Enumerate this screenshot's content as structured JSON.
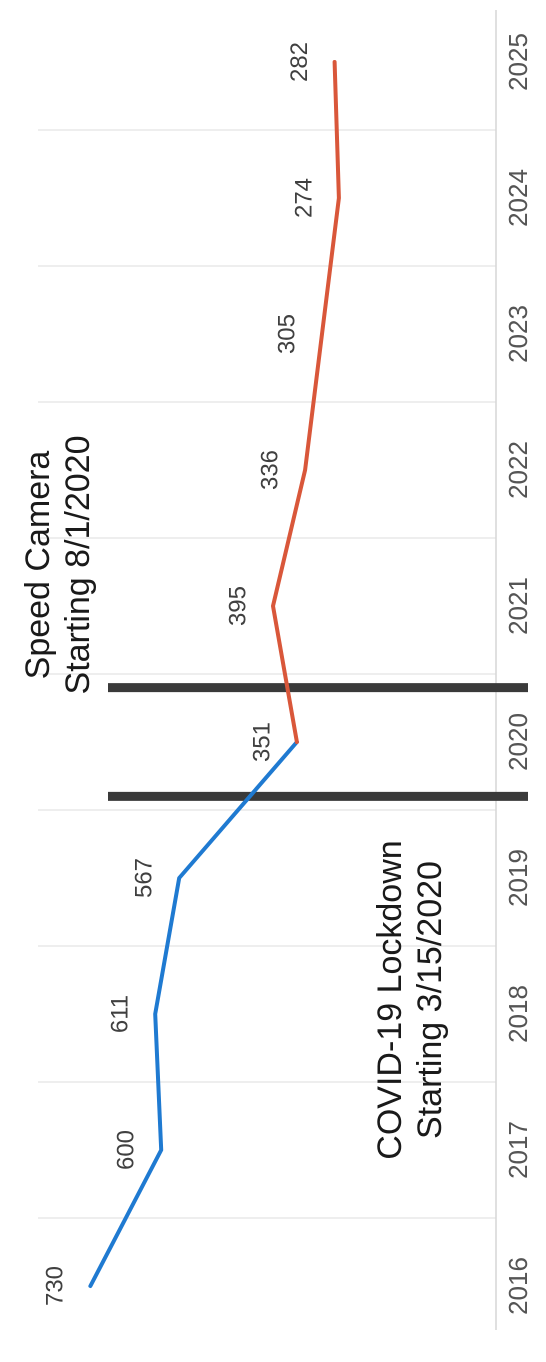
{
  "chart_data": {
    "type": "line",
    "x": [
      "2016",
      "2017",
      "2018",
      "2019",
      "2020",
      "2021",
      "2022",
      "2023",
      "2024",
      "2025"
    ],
    "series": [
      {
        "color": "#1f7ad1",
        "points": [
          {
            "x": 2016.0,
            "y": 730
          },
          {
            "x": 2017.0,
            "y": 600
          },
          {
            "x": 2018.0,
            "y": 611
          },
          {
            "x": 2019.0,
            "y": 567
          },
          {
            "x": 2020.0,
            "y": 351
          }
        ],
        "labels": [
          {
            "x": 2016.0,
            "text": "730"
          },
          {
            "x": 2017.0,
            "text": "600"
          },
          {
            "x": 2018.0,
            "text": "611"
          },
          {
            "x": 2019.0,
            "text": "567"
          },
          {
            "x": 2020.0,
            "text": "351"
          }
        ]
      },
      {
        "color": "#d9573a",
        "points": [
          {
            "x": 2020.0,
            "y": 351
          },
          {
            "x": 2021.0,
            "y": 395
          },
          {
            "x": 2022.0,
            "y": 336
          },
          {
            "x": 2023.0,
            "y": 305
          },
          {
            "x": 2024.0,
            "y": 274
          },
          {
            "x": 2025.0,
            "y": 282
          }
        ],
        "labels": [
          {
            "x": 2021.0,
            "text": "395"
          },
          {
            "x": 2022.0,
            "text": "336"
          },
          {
            "x": 2023.0,
            "text": "305"
          },
          {
            "x": 2024.0,
            "text": "274"
          },
          {
            "x": 2025.0,
            "text": "282"
          }
        ]
      }
    ],
    "events": [
      {
        "x": 2019.6,
        "line1": "COVID-19 Lockdown",
        "line2": "Starting 3/15/2020"
      },
      {
        "x": 2020.4,
        "line1": "Speed Camera",
        "line2": "Starting 8/1/2020"
      }
    ],
    "ylim": [
      250,
      760
    ],
    "grid": "vertical",
    "orientation": "rotated-90-clockwise"
  }
}
